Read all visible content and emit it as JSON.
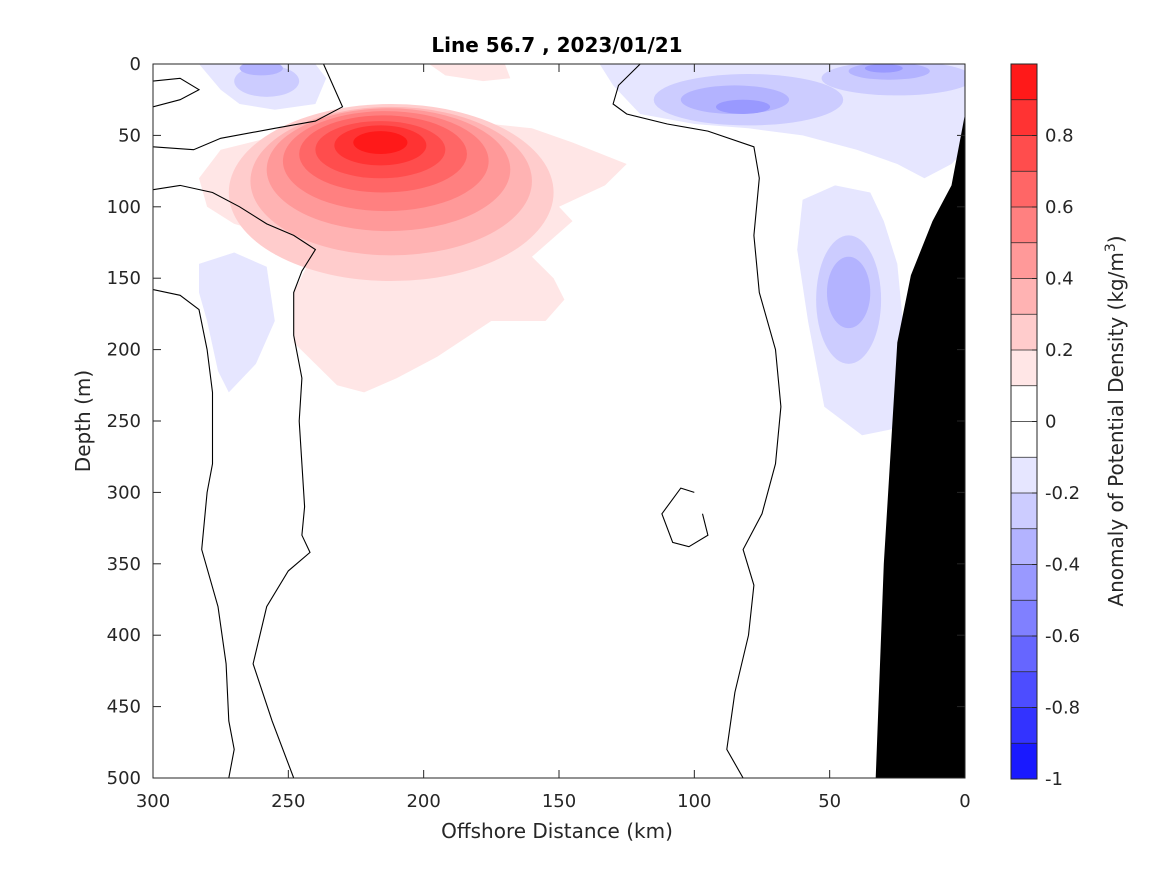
{
  "chart_data": {
    "type": "heatmap",
    "subtype": "filled-contour",
    "title": "Line 56.7 , 2023/01/21",
    "xlabel": "Offshore Distance (km)",
    "ylabel": "Depth (m)",
    "colorbar_label": "Anomaly of Potential Density (kg/m",
    "colorbar_label_sup": "3",
    "colorbar_label_end": ")",
    "x_axis": {
      "range": [
        300,
        0
      ],
      "reversed": true,
      "ticks": [
        "300",
        "250",
        "200",
        "150",
        "100",
        "50",
        "0"
      ]
    },
    "y_axis": {
      "range": [
        0,
        500
      ],
      "reversed": true,
      "ticks": [
        "0",
        "50",
        "100",
        "150",
        "200",
        "250",
        "300",
        "350",
        "400",
        "450",
        "500"
      ]
    },
    "colorbar": {
      "range": [
        -1,
        1
      ],
      "ticks": [
        "0.8",
        "0.6",
        "0.4",
        "0.2",
        "0",
        "-0.2",
        "-0.4",
        "-0.6",
        "-0.8",
        "-1"
      ],
      "levels": [
        -1,
        -0.9,
        -0.8,
        -0.7,
        -0.6,
        -0.5,
        -0.4,
        -0.3,
        -0.2,
        -0.1,
        0,
        0.1,
        0.2,
        0.3,
        0.4,
        0.5,
        0.6,
        0.7,
        0.8,
        0.9,
        1
      ]
    },
    "colormap": {
      "negative": "#0000ff",
      "positive": "#ff0000",
      "zero": "#ffffff"
    },
    "features": [
      {
        "name": "positive core",
        "peak_value": 0.9,
        "x_km": 215,
        "depth_m": 55
      },
      {
        "name": "positive tongue",
        "value": 0.1,
        "x_km_range": [
          280,
          130
        ],
        "depth_m_range": [
          10,
          230
        ]
      },
      {
        "name": "negative surface west",
        "value": -0.3,
        "x_km": 260,
        "depth_m": 15
      },
      {
        "name": "negative surface east",
        "value": -0.4,
        "x_km_range": [
          135,
          0
        ],
        "depth_m_range": [
          0,
          60
        ]
      },
      {
        "name": "negative subsurface west",
        "value": -0.1,
        "x_km": 270,
        "depth_m": 170
      },
      {
        "name": "negative nearshore",
        "value": -0.3,
        "x_km_range": [
          60,
          20
        ],
        "depth_m_range": [
          80,
          260
        ]
      }
    ],
    "bathymetry": {
      "color": "#000000",
      "x_km": [
        33,
        30,
        25,
        20,
        12,
        5,
        0
      ],
      "depth_m": [
        500,
        350,
        195,
        148,
        110,
        85,
        35
      ]
    }
  }
}
